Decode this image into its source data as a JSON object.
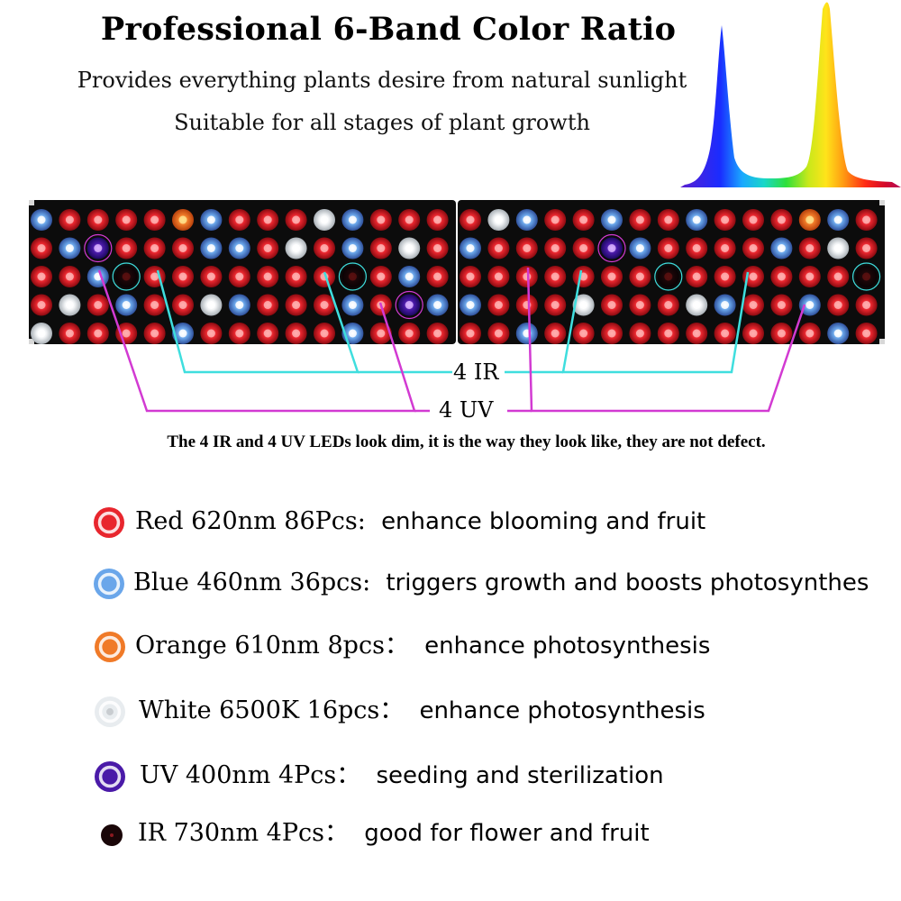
{
  "header": {
    "title": "Professional 6-Band Color Ratio",
    "subtitle_1": "Provides everything plants desire from natural sunlight",
    "subtitle_2": "Suitable for all stages of plant growth"
  },
  "callouts": {
    "ir_label": "4 IR",
    "uv_label": "4 UV",
    "ir_color": "#3fdede",
    "uv_color": "#d23ad2"
  },
  "note": "The 4 IR and 4 UV LEDs look dim, it is the way they look like, they are not defect.",
  "legend": [
    {
      "icon": "red-led-icon",
      "color": "#e8262e",
      "spec": "Red  620nm 86Pcs:",
      "desc": "enhance blooming and fruit"
    },
    {
      "icon": "blue-led-icon",
      "color": "#6aa6ea",
      "spec": "Blue 460nm 36pcs:",
      "desc": "triggers growth and boosts photosynthes"
    },
    {
      "icon": "orange-led-icon",
      "color": "#f07a28",
      "spec": "Orange 610nm 8pcs：",
      "desc": "enhance photosynthesis"
    },
    {
      "icon": "white-led-icon",
      "color": "#e8ecef",
      "spec": "White 6500K 16pcs：",
      "desc": "enhance photosynthesis"
    },
    {
      "icon": "uv-led-icon",
      "color": "#4a1aa8",
      "spec": "UV 400nm 4Pcs：",
      "desc": "seeding and sterilization"
    },
    {
      "icon": "ir-led-icon",
      "color": "#1a0608",
      "spec": "IR 730nm 4Pcs：",
      "desc": "good for flower and fruit"
    }
  ]
}
